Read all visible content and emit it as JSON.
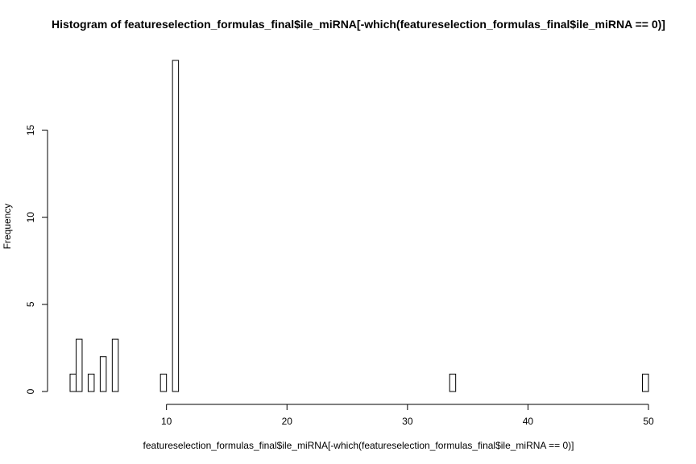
{
  "chart_data": {
    "type": "bar",
    "title": "Histogram of featureselection_formulas_final$ile_miRNA[-which(featureselection_formulas_final$ile_miRNA == 0)]",
    "xlabel": "featureselection_formulas_final$ile_miRNA[-which(featureselection_formulas_final$ile_miRNA == 0)]",
    "ylabel": "Frequency",
    "xlim": [
      2,
      50
    ],
    "ylim": [
      0,
      19
    ],
    "bin_width": 0.5,
    "x_ticks": [
      10,
      20,
      30,
      40,
      50
    ],
    "y_ticks": [
      0,
      5,
      10,
      15
    ],
    "bins": [
      {
        "x0": 2.0,
        "x1": 2.5,
        "count": 1
      },
      {
        "x0": 2.5,
        "x1": 3.0,
        "count": 3
      },
      {
        "x0": 3.5,
        "x1": 4.0,
        "count": 1
      },
      {
        "x0": 4.5,
        "x1": 5.0,
        "count": 2
      },
      {
        "x0": 5.5,
        "x1": 6.0,
        "count": 3
      },
      {
        "x0": 9.5,
        "x1": 10.0,
        "count": 1
      },
      {
        "x0": 10.5,
        "x1": 11.0,
        "count": 19
      },
      {
        "x0": 33.5,
        "x1": 34.0,
        "count": 1
      },
      {
        "x0": 49.5,
        "x1": 50.0,
        "count": 1
      }
    ],
    "grid": false,
    "legend": "none"
  }
}
